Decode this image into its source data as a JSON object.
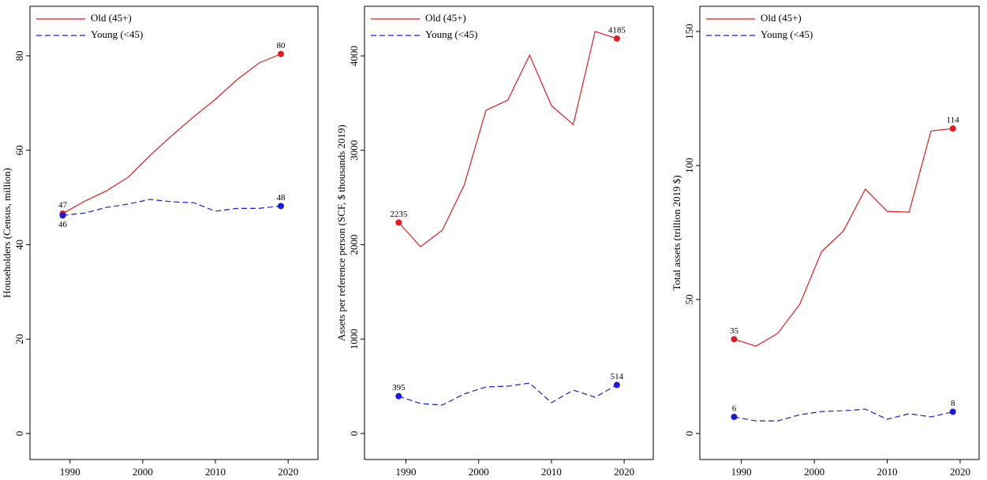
{
  "chart_data": [
    {
      "type": "line",
      "y_label": "Householders (Census, million)",
      "x": [
        1989,
        1992,
        1995,
        1998,
        2001,
        2004,
        2007,
        2010,
        2013,
        2016,
        2019
      ],
      "xlim": [
        1984.5,
        2024.1
      ],
      "xticks": [
        1990,
        2000,
        2010,
        2020
      ],
      "ylim": [
        -5.5,
        90.5
      ],
      "yticks": [
        0,
        20,
        40,
        60,
        80
      ],
      "legend": "upper left",
      "series": [
        {
          "name": "Old (45+)",
          "color": "#e8191e",
          "dash": false,
          "values": [
            46.6,
            49.2,
            51.4,
            54.3,
            58.9,
            63.1,
            67.1,
            70.8,
            75,
            78.5,
            80.4
          ],
          "value_labels": [
            "47",
            null,
            null,
            null,
            null,
            null,
            null,
            null,
            null,
            null,
            "80"
          ]
        },
        {
          "name": "Young (<45)",
          "color": "#1a1adc",
          "dash": true,
          "values": [
            46.2,
            46.7,
            47.9,
            48.6,
            49.6,
            49.1,
            48.9,
            47.1,
            47.7,
            47.7,
            48.2
          ],
          "value_labels": [
            "46",
            null,
            null,
            null,
            null,
            null,
            null,
            null,
            null,
            null,
            "48"
          ]
        }
      ]
    },
    {
      "type": "line",
      "y_label": "Assets per reference person (SCF, $ thousands 2019)",
      "x": [
        1989,
        1992,
        1995,
        1998,
        2001,
        2004,
        2007,
        2010,
        2013,
        2016,
        2019
      ],
      "xlim": [
        1984.3,
        2024.0
      ],
      "xticks": [
        1990,
        2000,
        2010,
        2020
      ],
      "ylim": [
        -276,
        4526
      ],
      "yticks": [
        0,
        1000,
        2000,
        3000,
        4000
      ],
      "legend": "upper left",
      "series": [
        {
          "name": "Old (45+)",
          "color": "#e8191e",
          "dash": false,
          "values": [
            2235,
            1979,
            2154,
            2630,
            3424,
            3532,
            4008,
            3474,
            3273,
            4259,
            4185
          ],
          "value_labels": [
            "2235",
            null,
            null,
            null,
            null,
            null,
            null,
            null,
            null,
            null,
            "4185"
          ]
        },
        {
          "name": "Young (<45)",
          "color": "#1a1adc",
          "dash": true,
          "values": [
            395,
            317,
            301,
            418,
            493,
            501,
            534,
            326,
            459,
            384,
            514
          ],
          "value_labels": [
            "395",
            null,
            null,
            null,
            null,
            null,
            null,
            null,
            null,
            null,
            "514"
          ]
        }
      ]
    },
    {
      "type": "line",
      "y_label": "Total assets (trillion 2019 $)",
      "x": [
        1989,
        1992,
        1995,
        1998,
        2001,
        2004,
        2007,
        2010,
        2013,
        2016,
        2019
      ],
      "xlim": [
        1984.3,
        2022.6
      ],
      "xticks": [
        1990,
        2000,
        2010,
        2020
      ],
      "ylim": [
        -9.7,
        159.4
      ],
      "yticks": [
        0,
        50,
        100,
        150
      ],
      "legend": "upper left",
      "series": [
        {
          "name": "Old (45+)",
          "color": "#e8191e",
          "dash": false,
          "values": [
            35.2,
            32.6,
            37.4,
            48.2,
            67.9,
            75.6,
            91.2,
            82.9,
            82.6,
            112.9,
            113.8
          ],
          "value_labels": [
            "35",
            null,
            null,
            null,
            null,
            null,
            null,
            null,
            null,
            null,
            "114"
          ]
        },
        {
          "name": "Young (<45)",
          "color": "#1a1adc",
          "dash": true,
          "values": [
            6.2,
            4.7,
            4.7,
            7,
            8.2,
            8.5,
            9.1,
            5.3,
            7.4,
            6.2,
            8.1
          ],
          "value_labels": [
            "6",
            null,
            null,
            null,
            null,
            null,
            null,
            null,
            null,
            null,
            "8"
          ]
        }
      ]
    }
  ]
}
